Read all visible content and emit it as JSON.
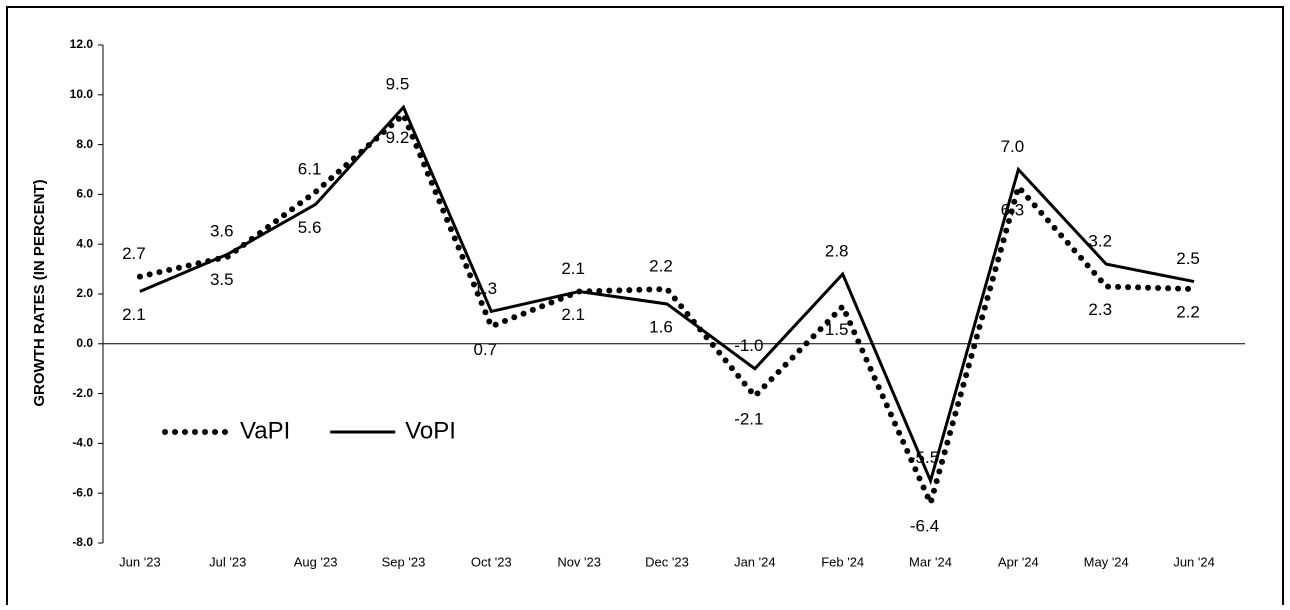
{
  "chart_data": {
    "type": "line",
    "y_axis_label": "GROWTH RATES (IN PERCENT)",
    "categories": [
      "Jun '23",
      "Jul '23",
      "Aug '23",
      "Sep '23",
      "Oct '23",
      "Nov '23",
      "Dec '23",
      "Jan '24",
      "Feb '24",
      "Mar '24",
      "Apr '24",
      "May '24",
      "Jun '24"
    ],
    "series": [
      {
        "name": "VaPI",
        "color": "#000000",
        "style": "dotted",
        "values": [
          2.7,
          3.5,
          6.1,
          9.2,
          0.7,
          2.1,
          2.2,
          -2.1,
          1.5,
          -6.4,
          6.3,
          2.3,
          2.2
        ],
        "value_labels": [
          "2.7",
          "3.5",
          "6.1",
          "9.2",
          "0.7",
          "2.1",
          "2.2",
          "-2.1",
          "1.5",
          "-6.4",
          "6.3",
          "2.3",
          "2.2"
        ]
      },
      {
        "name": "VoPI",
        "color": "#000000",
        "style": "solid",
        "values": [
          2.1,
          3.6,
          5.6,
          9.5,
          1.3,
          2.1,
          1.6,
          -1.0,
          2.8,
          -5.5,
          7.0,
          3.2,
          2.5
        ],
        "value_labels": [
          "2.1",
          "3.6",
          "5.6",
          "9.5",
          "1.3",
          "2.1",
          "1.6",
          "-1.0",
          "2.8",
          "-5.5",
          "7.0",
          "3.2",
          "2.5"
        ]
      }
    ],
    "ylim": [
      -8,
      12
    ],
    "yticks": [
      {
        "value": -8,
        "label": "-8.0"
      },
      {
        "value": -6,
        "label": "-6.0"
      },
      {
        "value": -4,
        "label": "-4.0"
      },
      {
        "value": -2,
        "label": "-2.0"
      },
      {
        "value": 0,
        "label": "0.0"
      },
      {
        "value": 2,
        "label": "2.0"
      },
      {
        "value": 4,
        "label": "4.0"
      },
      {
        "value": 6,
        "label": "6.0"
      },
      {
        "value": 8,
        "label": "8.0"
      },
      {
        "value": 10,
        "label": "10.0"
      },
      {
        "value": 12,
        "label": "12.0"
      }
    ],
    "grid": false,
    "legend": "lower left"
  }
}
